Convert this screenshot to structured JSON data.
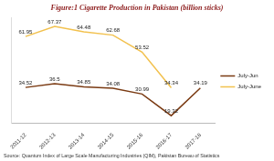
{
  "chart_data": {
    "type": "line",
    "title": "Figure:1 Cigarette Production in Pakistan (billion sticks)",
    "source": "Source: Quantum Index of Large Scale Manufacturing Industries (QIM), Pakistan Bureau of Statistics",
    "categories": [
      "2011-12",
      "2012-13",
      "2013-14",
      "2014-15",
      "2015-16",
      "2016-17",
      "2017-18"
    ],
    "series": [
      {
        "name": "July-Jun",
        "color": "#7a3a12",
        "values": [
          34.52,
          36.5,
          34.85,
          34.08,
          30.99,
          19.32,
          34.19
        ]
      },
      {
        "name": "July-June",
        "color": "#f2c14e",
        "values": [
          61.95,
          67.37,
          64.48,
          62.68,
          53.52,
          34.34,
          null
        ]
      }
    ],
    "ylim": [
      15,
      72
    ],
    "grid": false,
    "legend": "right",
    "data_labels": true,
    "tick_labels": "x",
    "marker": "none",
    "line_style": "solid"
  }
}
